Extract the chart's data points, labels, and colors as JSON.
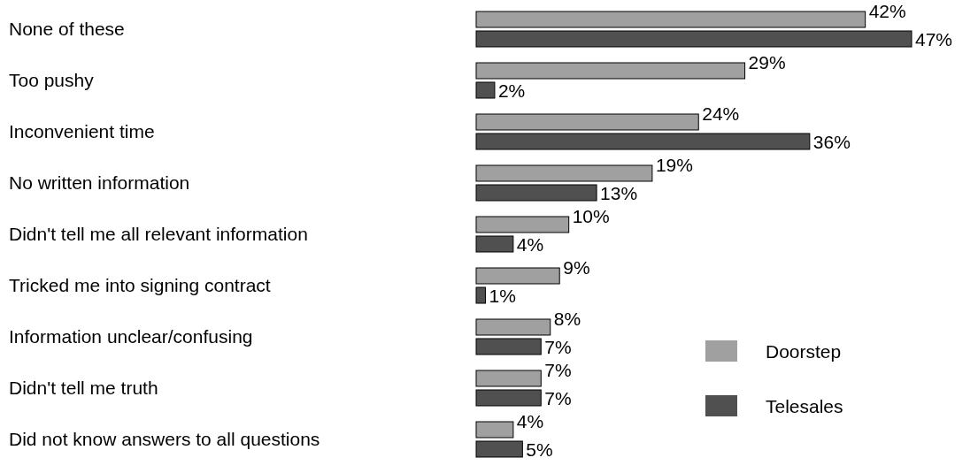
{
  "chart_data": {
    "type": "bar",
    "orientation": "horizontal",
    "categories": [
      "None of these",
      "Too pushy",
      "Inconvenient time",
      "No written information",
      "Didn't tell me all relevant information",
      "Tricked me into signing contract",
      "Information unclear/confusing",
      "Didn't tell me truth",
      "Did not know answers to all questions"
    ],
    "series": [
      {
        "name": "Doorstep",
        "color": "#a0a0a0",
        "values": [
          42,
          29,
          24,
          19,
          10,
          9,
          8,
          7,
          4
        ],
        "value_labels": [
          "42%",
          "29%",
          "24%",
          "19%",
          "10%",
          "9%",
          "8%",
          "7%",
          "4%"
        ]
      },
      {
        "name": "Telesales",
        "color": "#505050",
        "values": [
          47,
          2,
          36,
          13,
          4,
          1,
          7,
          7,
          5
        ],
        "value_labels": [
          "47%",
          "2%",
          "36%",
          "13%",
          "4%",
          "1%",
          "7%",
          "7%",
          "5%"
        ]
      }
    ],
    "legend": "right"
  }
}
